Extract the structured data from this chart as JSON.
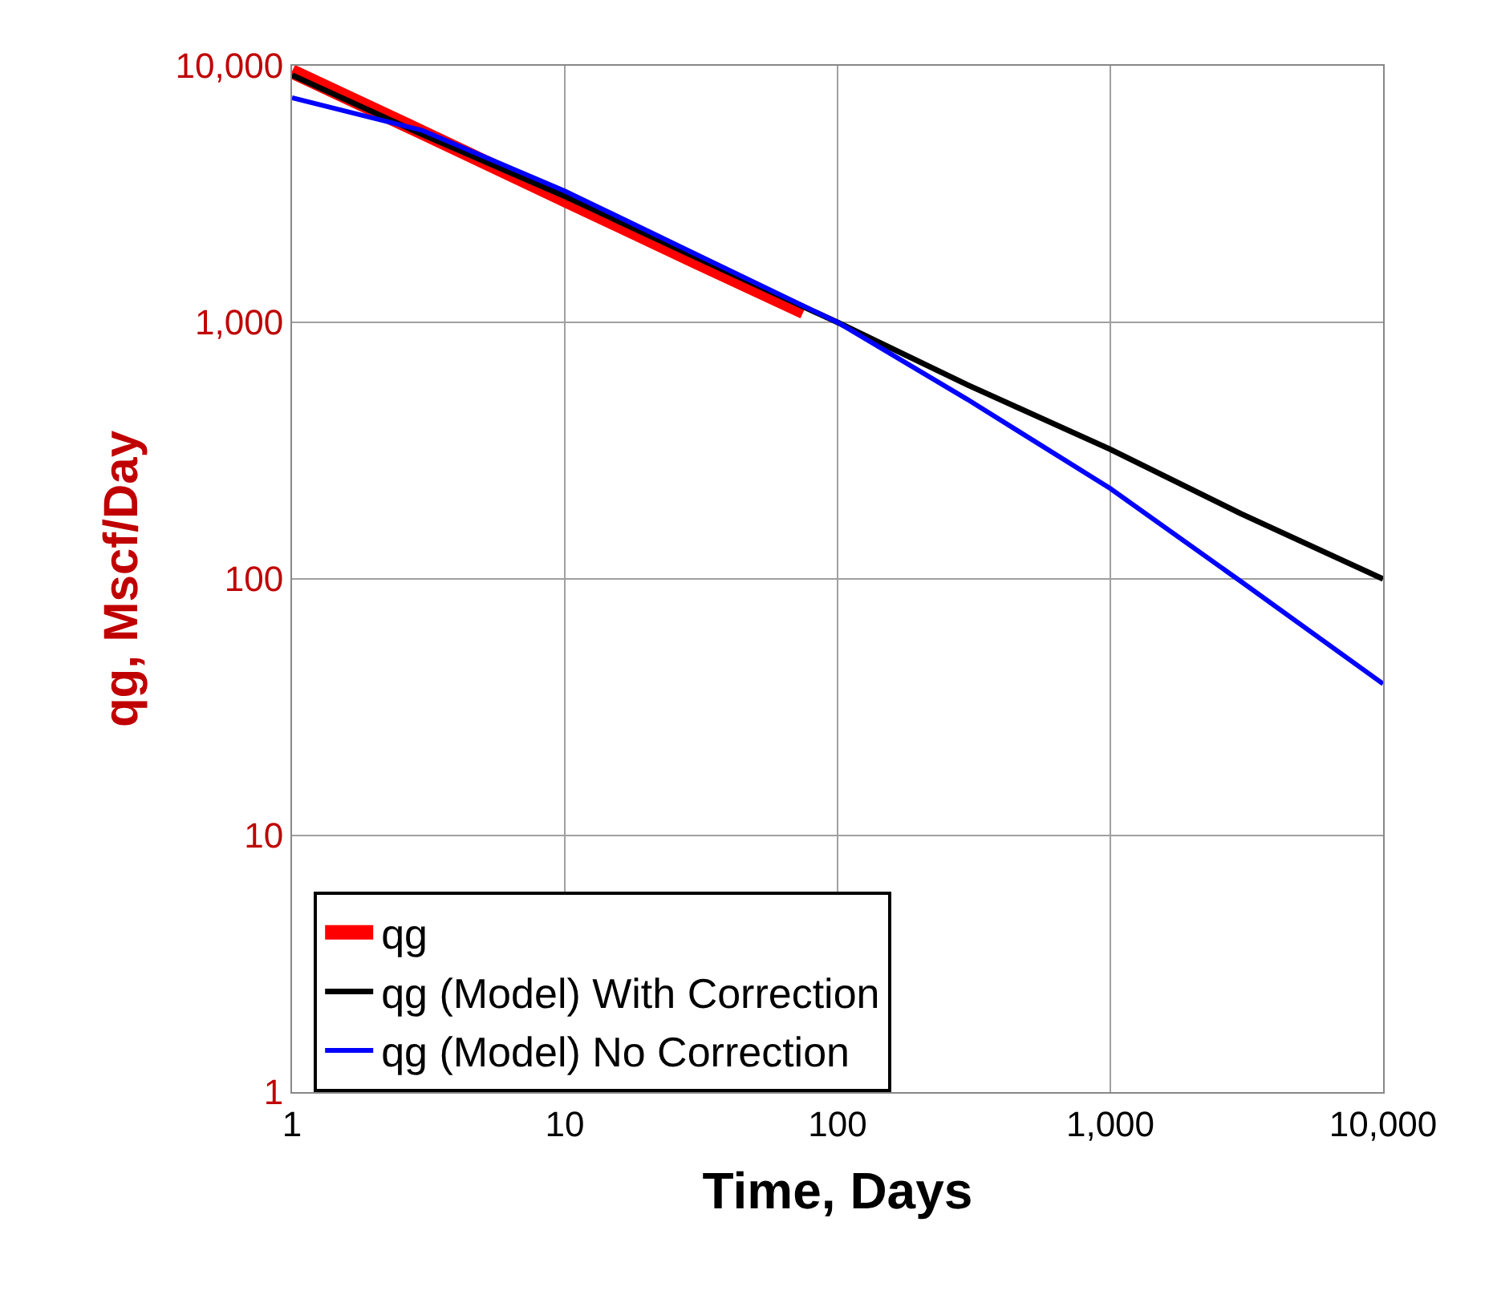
{
  "chart_data": {
    "type": "line",
    "xlabel": "Time, Days",
    "ylabel": "qg, Mscf/Day",
    "log": "xy",
    "grid": true,
    "legend": "bottom left",
    "marker": "none",
    "line_style": "solid",
    "xlim": [
      1,
      10000
    ],
    "xticks": [
      1,
      10,
      100,
      {
        "value": 1000,
        "label": "1,000"
      },
      {
        "value": 10000,
        "label": "10,000"
      }
    ],
    "ylim": [
      1,
      10000
    ],
    "yticks": [
      1,
      10,
      100,
      {
        "value": 1000,
        "label": "1,000"
      },
      {
        "value": 10000,
        "label": "10,000"
      }
    ],
    "series": [
      {
        "name": "qg",
        "color": "#ff0000",
        "x": [
          1,
          3,
          10,
          30,
          75
        ],
        "values": [
          9500,
          5500,
          3000,
          1730,
          1100
        ]
      },
      {
        "name": "qg (Model) With Correction",
        "color": "#000000",
        "x": [
          1,
          3,
          10,
          30,
          100,
          300,
          1000,
          3000,
          10000
        ],
        "values": [
          9200,
          5400,
          3100,
          1800,
          1000,
          570,
          320,
          180,
          100
        ]
      },
      {
        "name": "qg (Model) No Correction",
        "color": "#0000ff",
        "x": [
          1,
          3,
          10,
          30,
          100,
          300,
          1000,
          3000,
          10000
        ],
        "values": [
          7500,
          5600,
          3250,
          1850,
          1000,
          500,
          225,
          98,
          39
        ]
      }
    ]
  }
}
